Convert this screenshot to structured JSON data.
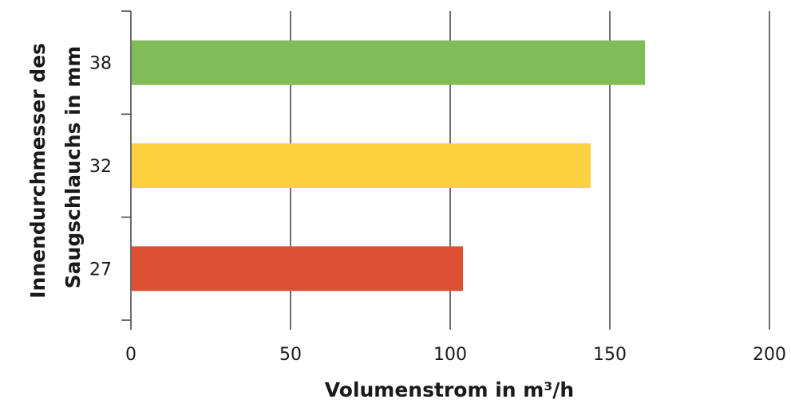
{
  "chart_data": {
    "type": "bar",
    "orientation": "horizontal",
    "categories": [
      "38",
      "32",
      "27"
    ],
    "values": [
      161,
      144,
      104
    ],
    "colors": [
      "#80bd57",
      "#fcd13f",
      "#de4f33"
    ],
    "title": "",
    "xlabel": "Volumenstrom in m³/h",
    "ylabel_lines": [
      "Innendurchmesser des",
      "Saugschlauchs in mm"
    ],
    "xlim": [
      0,
      200
    ],
    "xticks": [
      0,
      50,
      100,
      150,
      200
    ],
    "grid": "vertical",
    "legend": "none"
  }
}
